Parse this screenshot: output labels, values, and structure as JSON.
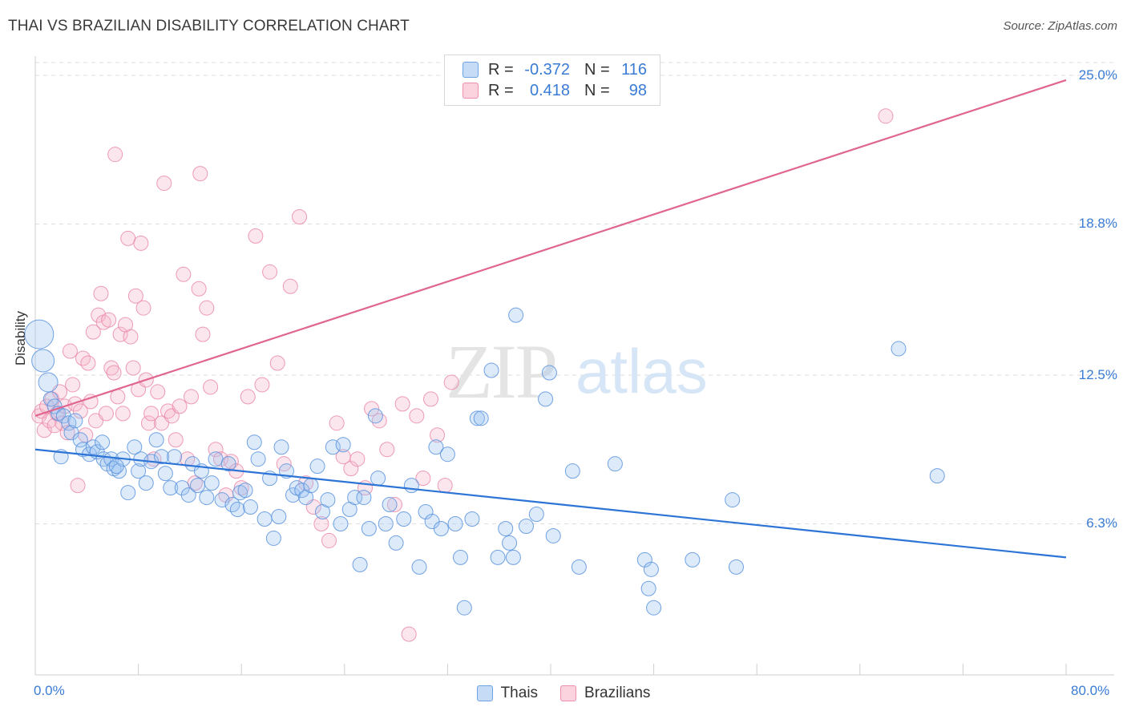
{
  "title": "THAI VS BRAZILIAN DISABILITY CORRELATION CHART",
  "source": "Source: ZipAtlas.com",
  "watermark": {
    "zip": "ZIP",
    "atlas": "atlas"
  },
  "legend_top": [
    {
      "r_label": "R =",
      "r_value": "-0.372",
      "n_label": "N =",
      "n_value": "116",
      "color": "#a8c8f0"
    },
    {
      "r_label": "R =",
      "r_value": "0.418",
      "n_label": "N =",
      "n_value": "98",
      "color": "#f5b8cb"
    }
  ],
  "colors": {
    "thais": "#5b9be8",
    "brazilians": "#ef8fae",
    "thais_line": "#2c74d6",
    "brazilians_line": "#e0658f",
    "axis_label": "#3a7bd5"
  },
  "chart_data": {
    "type": "scatter",
    "title": "THAI VS BRAZILIAN DISABILITY CORRELATION CHART",
    "xlabel": "",
    "ylabel": "Disability",
    "xlim": [
      0,
      80
    ],
    "ylim": [
      0,
      25.8
    ],
    "x_tick_labels": [
      "0.0%",
      "80.0%"
    ],
    "y_ticks": [
      6.3,
      12.5,
      18.8,
      25.0
    ],
    "y_tick_labels": [
      "6.3%",
      "12.5%",
      "18.8%",
      "25.0%"
    ],
    "grid": "horizontal dashed",
    "legend_position": "bottom",
    "series": [
      {
        "name": "Thais",
        "R": -0.372,
        "N": 116,
        "trend": {
          "x": [
            0,
            80
          ],
          "y": [
            9.4,
            4.9
          ]
        },
        "points": [
          [
            0.3,
            14.2
          ],
          [
            0.6,
            13.1
          ],
          [
            1.0,
            12.2
          ],
          [
            1.2,
            11.5
          ],
          [
            1.5,
            11.2
          ],
          [
            1.8,
            10.9
          ],
          [
            2.2,
            10.8
          ],
          [
            2.6,
            10.5
          ],
          [
            2.8,
            10.1
          ],
          [
            3.5,
            9.8
          ],
          [
            3.7,
            9.4
          ],
          [
            4.2,
            9.2
          ],
          [
            4.5,
            9.5
          ],
          [
            4.8,
            9.3
          ],
          [
            5.2,
            9.7
          ],
          [
            5.3,
            9.0
          ],
          [
            5.6,
            8.8
          ],
          [
            5.9,
            9.0
          ],
          [
            6.1,
            8.6
          ],
          [
            6.5,
            8.5
          ],
          [
            6.8,
            9.0
          ],
          [
            7.2,
            7.6
          ],
          [
            7.7,
            9.5
          ],
          [
            8.0,
            8.5
          ],
          [
            8.2,
            9.0
          ],
          [
            8.6,
            8.0
          ],
          [
            9.0,
            8.9
          ],
          [
            9.4,
            9.8
          ],
          [
            9.8,
            9.1
          ],
          [
            10.1,
            8.4
          ],
          [
            10.5,
            7.8
          ],
          [
            10.8,
            9.1
          ],
          [
            11.4,
            7.8
          ],
          [
            11.9,
            7.5
          ],
          [
            12.2,
            8.8
          ],
          [
            12.6,
            7.9
          ],
          [
            12.9,
            8.5
          ],
          [
            13.3,
            7.4
          ],
          [
            13.7,
            8.0
          ],
          [
            14.0,
            9.0
          ],
          [
            14.5,
            7.3
          ],
          [
            15.0,
            8.8
          ],
          [
            15.3,
            7.1
          ],
          [
            15.7,
            6.9
          ],
          [
            15.9,
            7.6
          ],
          [
            16.3,
            7.7
          ],
          [
            16.7,
            7.0
          ],
          [
            17.0,
            9.7
          ],
          [
            17.3,
            9.0
          ],
          [
            17.8,
            6.5
          ],
          [
            18.2,
            8.2
          ],
          [
            18.5,
            5.7
          ],
          [
            18.9,
            6.6
          ],
          [
            19.1,
            9.5
          ],
          [
            19.5,
            8.5
          ],
          [
            20.0,
            7.5
          ],
          [
            20.3,
            7.8
          ],
          [
            20.7,
            7.7
          ],
          [
            21.0,
            7.4
          ],
          [
            21.4,
            7.9
          ],
          [
            21.9,
            8.7
          ],
          [
            22.3,
            6.8
          ],
          [
            22.7,
            7.3
          ],
          [
            23.1,
            9.5
          ],
          [
            23.7,
            6.3
          ],
          [
            23.9,
            9.6
          ],
          [
            24.4,
            6.9
          ],
          [
            24.8,
            7.4
          ],
          [
            25.2,
            4.6
          ],
          [
            25.5,
            7.4
          ],
          [
            25.9,
            6.1
          ],
          [
            26.4,
            10.8
          ],
          [
            26.6,
            8.2
          ],
          [
            27.2,
            6.3
          ],
          [
            27.5,
            7.1
          ],
          [
            28.0,
            5.5
          ],
          [
            28.6,
            6.5
          ],
          [
            29.2,
            7.9
          ],
          [
            29.8,
            4.5
          ],
          [
            30.3,
            6.8
          ],
          [
            30.8,
            6.4
          ],
          [
            31.1,
            9.5
          ],
          [
            31.5,
            6.1
          ],
          [
            32.0,
            9.2
          ],
          [
            32.6,
            6.3
          ],
          [
            33.0,
            4.9
          ],
          [
            33.3,
            2.8
          ],
          [
            33.9,
            6.5
          ],
          [
            34.3,
            10.7
          ],
          [
            34.6,
            10.7
          ],
          [
            35.4,
            12.7
          ],
          [
            35.9,
            4.9
          ],
          [
            36.5,
            6.1
          ],
          [
            36.8,
            5.5
          ],
          [
            37.1,
            4.9
          ],
          [
            37.3,
            15.0
          ],
          [
            38.1,
            6.2
          ],
          [
            38.9,
            6.7
          ],
          [
            39.6,
            11.5
          ],
          [
            39.9,
            12.6
          ],
          [
            40.2,
            5.8
          ],
          [
            41.7,
            8.5
          ],
          [
            42.2,
            4.5
          ],
          [
            45.0,
            8.8
          ],
          [
            47.3,
            4.8
          ],
          [
            47.6,
            3.6
          ],
          [
            47.8,
            4.4
          ],
          [
            48.0,
            2.8
          ],
          [
            51.0,
            4.8
          ],
          [
            54.1,
            7.3
          ],
          [
            54.4,
            4.5
          ],
          [
            67.0,
            13.6
          ],
          [
            70.0,
            8.3
          ],
          [
            2.0,
            9.1
          ],
          [
            3.1,
            10.6
          ],
          [
            6.3,
            8.7
          ]
        ]
      },
      {
        "name": "Brazilians",
        "R": 0.418,
        "N": 98,
        "trend": {
          "x": [
            0,
            80
          ],
          "y": [
            10.8,
            24.8
          ]
        },
        "points": [
          [
            0.3,
            10.8
          ],
          [
            0.5,
            11.0
          ],
          [
            0.7,
            10.2
          ],
          [
            0.9,
            11.2
          ],
          [
            1.1,
            10.6
          ],
          [
            1.3,
            11.5
          ],
          [
            1.5,
            10.4
          ],
          [
            1.7,
            10.9
          ],
          [
            1.9,
            11.8
          ],
          [
            2.1,
            10.5
          ],
          [
            2.3,
            11.2
          ],
          [
            2.5,
            10.1
          ],
          [
            2.7,
            13.5
          ],
          [
            2.9,
            12.1
          ],
          [
            3.1,
            11.3
          ],
          [
            3.3,
            7.9
          ],
          [
            3.5,
            11.0
          ],
          [
            3.7,
            13.2
          ],
          [
            3.9,
            10.0
          ],
          [
            4.1,
            13.0
          ],
          [
            4.3,
            11.4
          ],
          [
            4.5,
            14.3
          ],
          [
            4.7,
            10.6
          ],
          [
            4.9,
            15.0
          ],
          [
            5.1,
            15.9
          ],
          [
            5.3,
            14.7
          ],
          [
            5.5,
            10.9
          ],
          [
            5.7,
            14.8
          ],
          [
            5.9,
            12.8
          ],
          [
            6.1,
            12.6
          ],
          [
            6.2,
            21.7
          ],
          [
            6.4,
            11.6
          ],
          [
            6.6,
            14.2
          ],
          [
            6.8,
            10.9
          ],
          [
            7.0,
            14.6
          ],
          [
            7.2,
            18.2
          ],
          [
            7.4,
            14.1
          ],
          [
            7.6,
            12.8
          ],
          [
            7.8,
            15.8
          ],
          [
            8.0,
            11.9
          ],
          [
            8.2,
            18.0
          ],
          [
            8.4,
            15.3
          ],
          [
            8.6,
            12.3
          ],
          [
            8.8,
            10.5
          ],
          [
            9.0,
            10.9
          ],
          [
            9.2,
            9.0
          ],
          [
            9.5,
            11.8
          ],
          [
            9.8,
            10.5
          ],
          [
            10.0,
            20.5
          ],
          [
            10.3,
            11.0
          ],
          [
            10.6,
            10.8
          ],
          [
            10.9,
            9.8
          ],
          [
            11.2,
            11.2
          ],
          [
            11.5,
            16.7
          ],
          [
            11.8,
            9.0
          ],
          [
            12.1,
            11.6
          ],
          [
            12.4,
            8.0
          ],
          [
            12.7,
            16.1
          ],
          [
            13.0,
            14.2
          ],
          [
            13.3,
            15.3
          ],
          [
            13.6,
            12.0
          ],
          [
            14.0,
            9.4
          ],
          [
            14.4,
            9.0
          ],
          [
            14.8,
            7.5
          ],
          [
            15.2,
            8.9
          ],
          [
            15.6,
            8.5
          ],
          [
            16.0,
            7.8
          ],
          [
            16.5,
            11.6
          ],
          [
            17.1,
            18.3
          ],
          [
            17.6,
            12.1
          ],
          [
            18.2,
            16.8
          ],
          [
            18.8,
            13.0
          ],
          [
            19.3,
            8.8
          ],
          [
            19.8,
            16.2
          ],
          [
            20.5,
            19.1
          ],
          [
            21.0,
            8.0
          ],
          [
            21.6,
            7.0
          ],
          [
            22.2,
            6.3
          ],
          [
            22.8,
            5.6
          ],
          [
            23.4,
            10.5
          ],
          [
            23.9,
            9.1
          ],
          [
            24.5,
            8.6
          ],
          [
            25.0,
            9.0
          ],
          [
            25.6,
            7.8
          ],
          [
            26.1,
            11.1
          ],
          [
            26.7,
            10.6
          ],
          [
            27.3,
            9.4
          ],
          [
            27.9,
            7.1
          ],
          [
            28.5,
            11.3
          ],
          [
            29.0,
            1.7
          ],
          [
            29.6,
            10.8
          ],
          [
            30.1,
            8.2
          ],
          [
            30.7,
            11.5
          ],
          [
            31.2,
            10.0
          ],
          [
            31.8,
            7.9
          ],
          [
            32.3,
            12.2
          ],
          [
            66.0,
            23.3
          ],
          [
            12.8,
            20.9
          ]
        ]
      }
    ]
  }
}
